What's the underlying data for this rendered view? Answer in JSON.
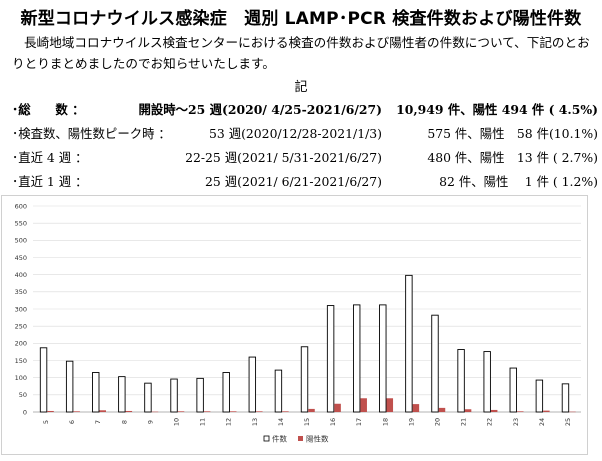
{
  "title": "新型コロナウイルス感染症　週別 LAMP･PCR 検査件数および陽性件数",
  "intro": "長崎地域コロナウイルス検査センターにおける検査の件数および陽性者の件数について、下記のとおりとりまとめましたのでお知らせいたします。",
  "ki": "記",
  "stats": [
    {
      "label": "･総　　数 ：",
      "period": "開設時～25 週(2020/ 4/25-2021/6/27)",
      "count": "10,949 件、陽性  494 件 ( 4.5%)",
      "bold": true
    },
    {
      "label": "･検査数、陽性数ピーク時 ：",
      "period": "53 週(2020/12/28-2021/1/3)",
      "count": "575 件、陽性　58 件(10.1%)",
      "bold": false
    },
    {
      "label": "･直近 4 週 ：",
      "period": "22-25 週(2021/ 5/31-2021/6/27)",
      "count": "480 件、陽性　13 件 ( 2.7%)",
      "bold": false
    },
    {
      "label": "･直近 1 週 ：",
      "period": "25 週(2021/ 6/21-2021/6/27)",
      "count": "82 件、陽性　 1 件 ( 1.2%)",
      "bold": false
    }
  ],
  "chart_data": {
    "type": "bar",
    "categories": [
      "5",
      "6",
      "7",
      "8",
      "9",
      "10",
      "11",
      "12",
      "13",
      "14",
      "15",
      "16",
      "17",
      "18",
      "19",
      "20",
      "21",
      "22",
      "23",
      "24",
      "25"
    ],
    "series": [
      {
        "name": "件数",
        "values": [
          187,
          148,
          115,
          103,
          84,
          96,
          98,
          115,
          160,
          122,
          190,
          310,
          312,
          312,
          398,
          282,
          182,
          176,
          128,
          93,
          82
        ],
        "color": "#ffffff",
        "stroke": "#000000"
      },
      {
        "name": "陽性数",
        "values": [
          3,
          2,
          5,
          3,
          1,
          2,
          2,
          2,
          2,
          2,
          9,
          24,
          40,
          40,
          23,
          12,
          8,
          6,
          2,
          4,
          1
        ],
        "color": "#c0504d"
      }
    ],
    "ylim": [
      0,
      600
    ],
    "yticks": [
      0,
      50,
      100,
      150,
      200,
      250,
      300,
      350,
      400,
      450,
      500,
      550,
      600
    ],
    "grid": true,
    "legend": "bottom-center"
  }
}
